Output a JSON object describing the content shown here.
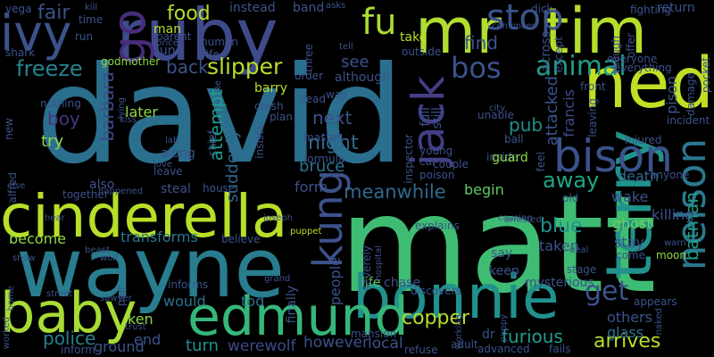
{
  "cloud": {
    "words": [
      {
        "text": "david",
        "color": "#2b6f8e"
      },
      {
        "text": "matt",
        "color": "#3fbc73"
      },
      {
        "text": "wayne",
        "color": "#287d8e"
      },
      {
        "text": "cinderella",
        "color": "#b8de29"
      },
      {
        "text": "bonnie",
        "color": "#21918c"
      },
      {
        "text": "ruby",
        "color": "#3e4a89"
      },
      {
        "text": "ned",
        "color": "#c0df25"
      },
      {
        "text": "edmund",
        "color": "#35b779"
      },
      {
        "text": "tim",
        "color": "#b5de2b"
      },
      {
        "text": "mr",
        "color": "#b0dd2f"
      },
      {
        "text": "baby",
        "color": "#a8db34"
      },
      {
        "text": "terry",
        "color": "#21918c"
      },
      {
        "text": "bison",
        "color": "#3b528b"
      },
      {
        "text": "jack",
        "color": "#433e85"
      },
      {
        "text": "kung",
        "color": "#3b528b"
      },
      {
        "text": "ivy",
        "color": "#3b528b"
      },
      {
        "text": "nelson",
        "color": "#2a788e"
      },
      {
        "text": "go",
        "color": "#472c7a"
      },
      {
        "text": "fu",
        "color": "#a8db34"
      },
      {
        "text": "stop",
        "color": "#3b528b"
      },
      {
        "text": "animal",
        "color": "#1f9e89"
      },
      {
        "text": "bos",
        "color": "#3b528b"
      },
      {
        "text": "slipper",
        "color": "#b5de2b"
      },
      {
        "text": "food",
        "color": "#b5de2b"
      },
      {
        "text": "freeze",
        "color": "#26828e"
      },
      {
        "text": "copper",
        "color": "#b5de2b"
      },
      {
        "text": "meanwhile",
        "color": "#31688e"
      },
      {
        "text": "night",
        "color": "#31688e"
      },
      {
        "text": "attempt",
        "color": "#1f9e89"
      },
      {
        "text": "blue",
        "color": "#21918c"
      },
      {
        "text": "get",
        "color": "#3b528b"
      },
      {
        "text": "furious",
        "color": "#1f9e89"
      },
      {
        "text": "arrives",
        "color": "#b8de29"
      },
      {
        "text": "police",
        "color": "#26828e"
      },
      {
        "text": "boy",
        "color": "#46337e"
      },
      {
        "text": "barbara",
        "color": "#3e4a89"
      },
      {
        "text": "fair",
        "color": "#3b528b"
      },
      {
        "text": "back",
        "color": "#3b528b"
      },
      {
        "text": "pub",
        "color": "#21918c"
      },
      {
        "text": "away",
        "color": "#20a486"
      },
      {
        "text": "attacked",
        "color": "#3b528b"
      },
      {
        "text": "francis",
        "color": "#3e4a89"
      },
      {
        "text": "batman",
        "color": "#1f9e89"
      },
      {
        "text": "pison",
        "color": "#3b528b"
      },
      {
        "text": "next",
        "color": "#3b528b"
      },
      {
        "text": "see",
        "color": "#3b528b"
      },
      {
        "text": "find",
        "color": "#3b528b"
      },
      {
        "text": "try",
        "color": "#8fd744"
      },
      {
        "text": "later",
        "color": "#8fd744"
      },
      {
        "text": "suddenly",
        "color": "#31688e"
      },
      {
        "text": "bruce",
        "color": "#2c728e"
      },
      {
        "text": "werewolf",
        "color": "#3e4a89"
      },
      {
        "text": "however",
        "color": "#3b528b"
      },
      {
        "text": "local",
        "color": "#3b528b"
      },
      {
        "text": "people",
        "color": "#3b528b"
      },
      {
        "text": "transforms",
        "color": "#2a788e"
      },
      {
        "text": "turn",
        "color": "#21918c"
      },
      {
        "text": "ground",
        "color": "#3b528b"
      },
      {
        "text": "end",
        "color": "#3b528b"
      },
      {
        "text": "ken",
        "color": "#8fd744"
      },
      {
        "text": "would",
        "color": "#2c728e"
      },
      {
        "text": "tod",
        "color": "#2c728e"
      },
      {
        "text": "taken",
        "color": "#3b528b"
      },
      {
        "text": "stay",
        "color": "#3b528b"
      },
      {
        "text": "wake",
        "color": "#3b528b"
      },
      {
        "text": "death",
        "color": "#31688e"
      },
      {
        "text": "ghost",
        "color": "#6ece58"
      },
      {
        "text": "killing",
        "color": "#3b528b"
      },
      {
        "text": "others",
        "color": "#3b528b"
      },
      {
        "text": "glass",
        "color": "#2c728e"
      },
      {
        "text": "begin",
        "color": "#5ec962"
      },
      {
        "text": "form",
        "color": "#3b528b"
      },
      {
        "text": "life",
        "color": "#5ec962"
      },
      {
        "text": "chase",
        "color": "#3b528b"
      },
      {
        "text": "mysterious",
        "color": "#3b528b"
      },
      {
        "text": "keep",
        "color": "#3b528b"
      },
      {
        "text": "say",
        "color": "#3b528b"
      },
      {
        "text": "barry",
        "color": "#b5de2b"
      },
      {
        "text": "although",
        "color": "#3b528b"
      },
      {
        "text": "instead",
        "color": "#3b528b"
      },
      {
        "text": "band",
        "color": "#3b528b"
      },
      {
        "text": "take",
        "color": "#b5de2b"
      },
      {
        "text": "full",
        "color": "#3b528b"
      },
      {
        "text": "still",
        "color": "#3b528b"
      },
      {
        "text": "across",
        "color": "#3b528b"
      },
      {
        "text": "return",
        "color": "#3b528b"
      },
      {
        "text": "man",
        "color": "#b5de2b"
      },
      {
        "text": "lung",
        "color": "#3b528b"
      },
      {
        "text": "become",
        "color": "#8fd744"
      },
      {
        "text": "also",
        "color": "#3b528b"
      },
      {
        "text": "along",
        "color": "#3b528b"
      },
      {
        "text": "steal",
        "color": "#3b528b"
      },
      {
        "text": "believe",
        "color": "#3b528b"
      },
      {
        "text": "finally",
        "color": "#3b528b"
      },
      {
        "text": "severely",
        "color": "#3b528b"
      },
      {
        "text": "inspector",
        "color": "#3b528b"
      },
      {
        "text": "appears",
        "color": "#3b528b"
      },
      {
        "text": "come",
        "color": "#3b528b"
      },
      {
        "text": "stage",
        "color": "#3b528b"
      },
      {
        "text": "moon",
        "color": "#8fd744"
      },
      {
        "text": "mansion",
        "color": "#3b528b"
      },
      {
        "text": "advanced",
        "color": "#3b528b"
      },
      {
        "text": "fails",
        "color": "#3b528b"
      },
      {
        "text": "dr",
        "color": "#3b528b"
      },
      {
        "text": "adult",
        "color": "#3b528b"
      },
      {
        "text": "refuse",
        "color": "#3b528b"
      },
      {
        "text": "explains",
        "color": "#3b528b"
      },
      {
        "text": "discovers",
        "color": "#3b528b"
      },
      {
        "text": "inform",
        "color": "#3b528b"
      },
      {
        "text": "informs",
        "color": "#3b528b"
      },
      {
        "text": "puppet",
        "color": "#b8de29"
      },
      {
        "text": "insists",
        "color": "#3b528b"
      },
      {
        "text": "crash",
        "color": "#3b528b"
      },
      {
        "text": "plan",
        "color": "#3b528b"
      },
      {
        "text": "way",
        "color": "#3b528b"
      },
      {
        "text": "dead",
        "color": "#3b528b"
      },
      {
        "text": "master",
        "color": "#3b528b"
      },
      {
        "text": "formula",
        "color": "#3b528b"
      },
      {
        "text": "young",
        "color": "#3b528b"
      },
      {
        "text": "car",
        "color": "#3b528b"
      },
      {
        "text": "poison",
        "color": "#3b528b"
      },
      {
        "text": "inside",
        "color": "#3b528b"
      },
      {
        "text": "ball",
        "color": "#3b528b"
      },
      {
        "text": "guard",
        "color": "#8fd744"
      },
      {
        "text": "couple",
        "color": "#3b528b"
      },
      {
        "text": "feel",
        "color": "#3b528b"
      },
      {
        "text": "leaving",
        "color": "#3b528b"
      },
      {
        "text": "anyone",
        "color": "#3b528b"
      },
      {
        "text": "injured",
        "color": "#3b528b"
      },
      {
        "text": "incident",
        "color": "#3b528b"
      },
      {
        "text": "front",
        "color": "#3b528b"
      },
      {
        "text": "everything",
        "color": "#3b528b"
      },
      {
        "text": "everyone",
        "color": "#3b528b"
      },
      {
        "text": "though",
        "color": "#3b528b"
      },
      {
        "text": "offer",
        "color": "#3b528b"
      },
      {
        "text": "damage",
        "color": "#3b528b"
      },
      {
        "text": "pocket",
        "color": "#3b528b"
      },
      {
        "text": "fighting",
        "color": "#3b528b"
      },
      {
        "text": "vega",
        "color": "#3b528b"
      },
      {
        "text": "time",
        "color": "#3b528b"
      },
      {
        "text": "run",
        "color": "#3b528b"
      },
      {
        "text": "shark",
        "color": "#3b528b"
      },
      {
        "text": "godmother",
        "color": "#8fd744"
      },
      {
        "text": "parent",
        "color": "#3b528b"
      },
      {
        "text": "price",
        "color": "#3b528b"
      },
      {
        "text": "human",
        "color": "#3b528b"
      },
      {
        "text": "wife",
        "color": "#3b528b"
      },
      {
        "text": "asks",
        "color": "#3b528b"
      },
      {
        "text": "three",
        "color": "#3b528b"
      },
      {
        "text": "tell",
        "color": "#3b528b"
      },
      {
        "text": "order",
        "color": "#3b528b"
      },
      {
        "text": "dick",
        "color": "#3b528b"
      },
      {
        "text": "convinces",
        "color": "#3b528b"
      },
      {
        "text": "outside",
        "color": "#3b528b"
      },
      {
        "text": "except",
        "color": "#3b528b"
      },
      {
        "text": "unable",
        "color": "#3b528b"
      },
      {
        "text": "city",
        "color": "#3b528b"
      },
      {
        "text": "new",
        "color": "#3b528b"
      },
      {
        "text": "nothing",
        "color": "#3b528b"
      },
      {
        "text": "lying",
        "color": "#3b528b"
      },
      {
        "text": "kiss",
        "color": "#3b528b"
      },
      {
        "text": "lab",
        "color": "#3b528b"
      },
      {
        "text": "love",
        "color": "#3b528b"
      },
      {
        "text": "chief",
        "color": "#3b528b"
      },
      {
        "text": "leave",
        "color": "#3b528b"
      },
      {
        "text": "house",
        "color": "#3b528b"
      },
      {
        "text": "alfred",
        "color": "#3b528b"
      },
      {
        "text": "else",
        "color": "#3b528b"
      },
      {
        "text": "together",
        "color": "#3b528b"
      },
      {
        "text": "happened",
        "color": "#3b528b"
      },
      {
        "text": "hear",
        "color": "#3b528b"
      },
      {
        "text": "joseph",
        "color": "#3b528b"
      },
      {
        "text": "beast",
        "color": "#3b528b"
      },
      {
        "text": "wolf",
        "color": "#3b528b"
      },
      {
        "text": "pair",
        "color": "#3b528b"
      },
      {
        "text": "trust",
        "color": "#3b528b"
      },
      {
        "text": "sawyer",
        "color": "#3b528b"
      },
      {
        "text": "street",
        "color": "#3b528b"
      },
      {
        "text": "home",
        "color": "#3b528b"
      },
      {
        "text": "worked",
        "color": "#3b528b"
      },
      {
        "text": "working",
        "color": "#3b528b"
      },
      {
        "text": "arrested",
        "color": "#3b528b"
      },
      {
        "text": "hospital",
        "color": "#3b528b"
      },
      {
        "text": "puppy",
        "color": "#3b528b"
      },
      {
        "text": "deal",
        "color": "#3b528b"
      },
      {
        "text": "naked",
        "color": "#3b528b"
      },
      {
        "text": "warn",
        "color": "#3b528b"
      },
      {
        "text": "old",
        "color": "#3b528b"
      },
      {
        "text": "show",
        "color": "#3b528b"
      },
      {
        "text": "grand",
        "color": "#3b528b"
      },
      {
        "text": "causing",
        "color": "#3b528b"
      },
      {
        "text": "kill",
        "color": "#3b528b"
      },
      {
        "text": "lie",
        "color": "#3b528b"
      },
      {
        "text": "long",
        "color": "#3b528b"
      },
      {
        "text": "true",
        "color": "#3b528b"
      }
    ]
  }
}
